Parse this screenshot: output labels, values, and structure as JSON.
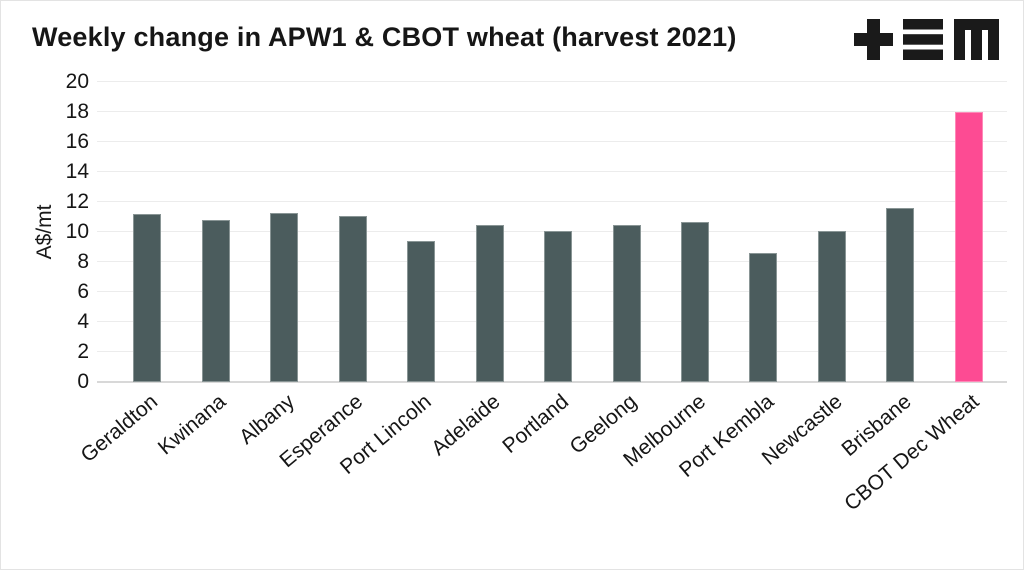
{
  "header": {
    "logo_name": "TEM",
    "logo_color": "#1a1a1a"
  },
  "colors": {
    "text": "#161616",
    "gridline": "#ececec",
    "axis_line": "#d8d8d8",
    "page_border": "#e3e3e3",
    "background": "#ffffff"
  },
  "chart_data": {
    "type": "bar",
    "title": "Weekly change in APW1 & CBOT wheat (harvest 2021)",
    "xlabel": "",
    "ylabel": "A$/mt",
    "ylim": [
      0,
      20
    ],
    "yticks": [
      20,
      18,
      16,
      14,
      12,
      10,
      8,
      6,
      4,
      2,
      0
    ],
    "grid": true,
    "legend": false,
    "categories": [
      "Geraldton",
      "Kwinana",
      "Albany",
      "Esperance",
      "Port Lincoln",
      "Adelaide",
      "Portland",
      "Geelong",
      "Melbourne",
      "Port Kembla",
      "Newcastle",
      "Brisbane",
      "CBOT Dec Wheat"
    ],
    "values": [
      11.2,
      10.8,
      11.3,
      11.1,
      9.4,
      10.5,
      10.1,
      10.5,
      10.7,
      8.6,
      10.1,
      11.6,
      18.0
    ],
    "bar_color_default": "#4b5c5d",
    "bar_color_highlight": "#fd4b93",
    "highlight_index": 12
  }
}
